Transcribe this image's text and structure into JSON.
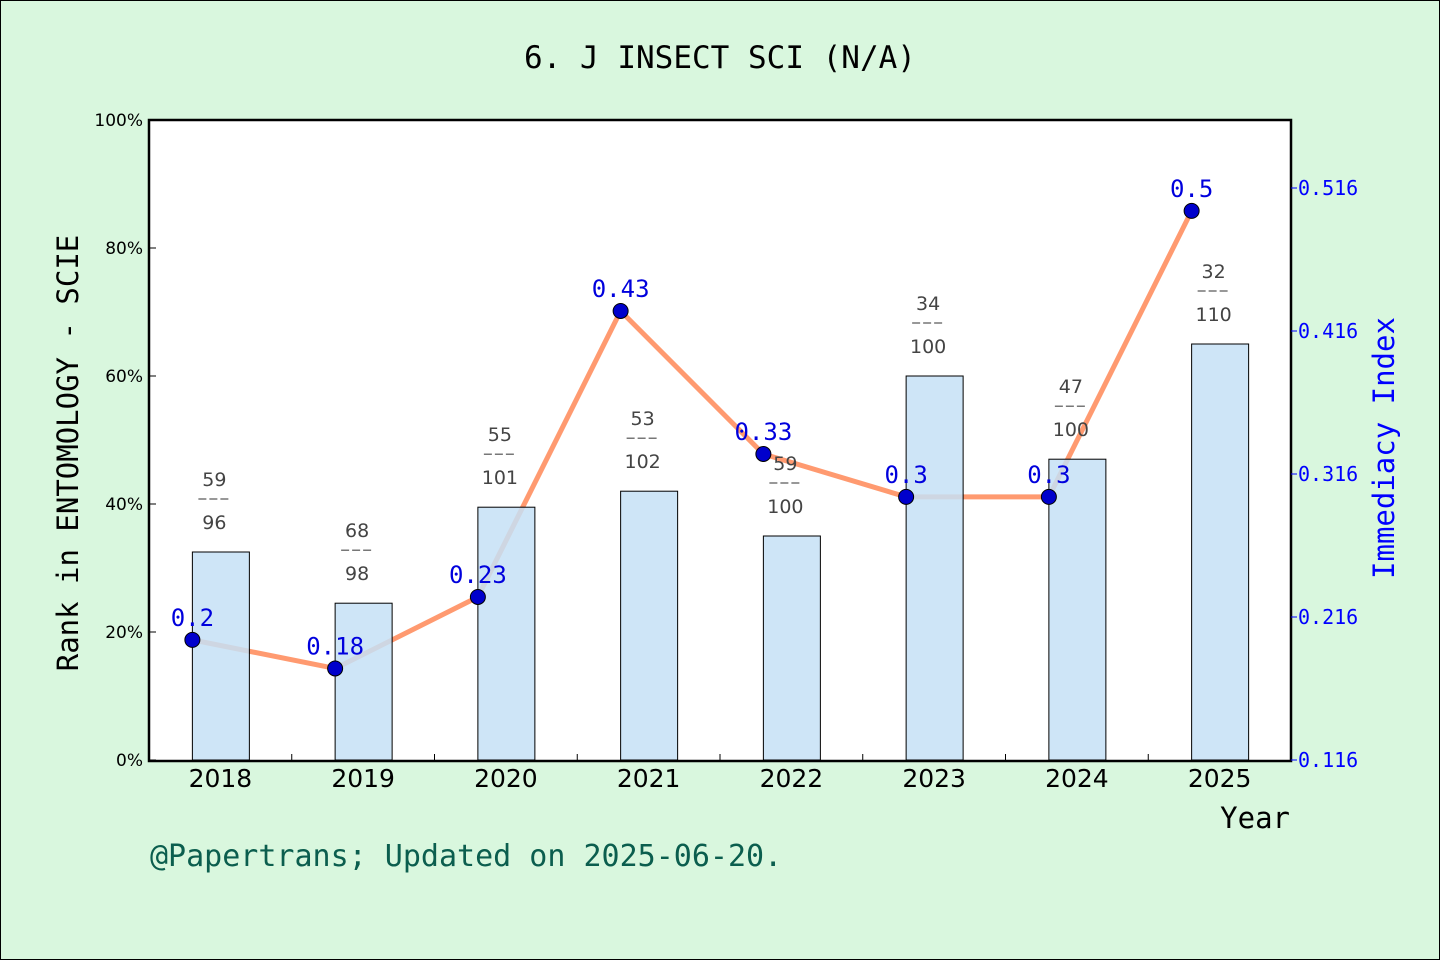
{
  "chart_data": {
    "type": "bar+line",
    "title": "6. J INSECT SCI (N/A)",
    "xlabel": "Year",
    "ylabel_left": "Rank in ENTOMOLOGY - SCIE",
    "ylabel_right": "Immediacy Index",
    "categories": [
      "2018",
      "2019",
      "2020",
      "2021",
      "2022",
      "2023",
      "2024",
      "2025"
    ],
    "left_ylim": [
      0,
      100
    ],
    "left_ticks": [
      "0%",
      "20%",
      "40%",
      "60%",
      "80%",
      "100%"
    ],
    "right_ylim": [
      0.116,
      0.516
    ],
    "right_ticks": [
      "0.116",
      "0.216",
      "0.316",
      "0.416",
      "0.516"
    ],
    "bars": {
      "values": [
        32.5,
        24.5,
        39.5,
        42,
        35,
        60,
        47,
        65
      ],
      "rank_labels": [
        {
          "rank": "59",
          "total": "96"
        },
        {
          "rank": "68",
          "total": "98"
        },
        {
          "rank": "55",
          "total": "101"
        },
        {
          "rank": "53",
          "total": "102"
        },
        {
          "rank": "59",
          "total": "100"
        },
        {
          "rank": "34",
          "total": "100"
        },
        {
          "rank": "47",
          "total": "100"
        },
        {
          "rank": "32",
          "total": "110"
        }
      ],
      "color": "#c6e0f6"
    },
    "line": {
      "values": [
        0.2,
        0.18,
        0.23,
        0.43,
        0.33,
        0.3,
        0.3,
        0.5
      ],
      "labels": [
        "0.2",
        "0.18",
        "0.23",
        "0.43",
        "0.33",
        "0.3",
        "0.3",
        "0.5"
      ],
      "line_color": "#ff9a70",
      "point_color": "#0000cc"
    },
    "footer": "@Papertrans; Updated on 2025-06-20."
  }
}
